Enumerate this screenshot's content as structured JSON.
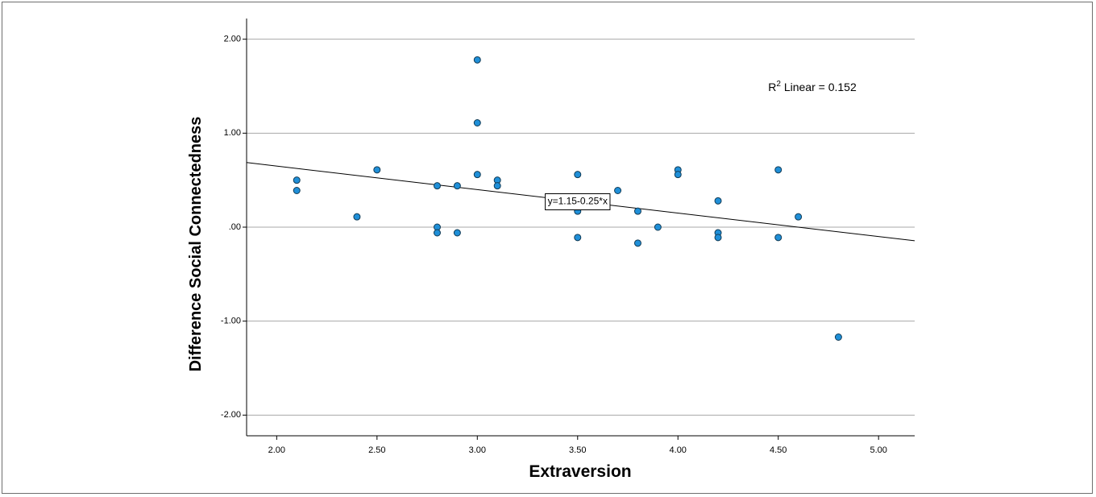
{
  "chart_data": {
    "type": "scatter",
    "title": "",
    "xlabel": "Extraversion",
    "ylabel": "Difference Social Connectedness",
    "xlim": [
      1.85,
      5.18
    ],
    "ylim": [
      -2.22,
      2.22
    ],
    "x_ticks": [
      "2.00",
      "2.50",
      "3.00",
      "3.50",
      "4.00",
      "4.50",
      "5.00"
    ],
    "y_ticks": [
      "2.00",
      "1.00",
      ".00",
      "-1.00",
      "-2.00"
    ],
    "grid": "horizontal",
    "legend": "none",
    "point_color": "#1f8fd8",
    "point_stroke": "#123b55",
    "points": [
      {
        "x": 2.1,
        "y": 0.5
      },
      {
        "x": 2.1,
        "y": 0.39
      },
      {
        "x": 2.4,
        "y": 0.11
      },
      {
        "x": 2.5,
        "y": 0.61
      },
      {
        "x": 2.8,
        "y": 0.44
      },
      {
        "x": 2.8,
        "y": 0.0
      },
      {
        "x": 2.8,
        "y": -0.06
      },
      {
        "x": 2.9,
        "y": 0.44
      },
      {
        "x": 2.9,
        "y": -0.06
      },
      {
        "x": 3.0,
        "y": 1.78
      },
      {
        "x": 3.0,
        "y": 1.11
      },
      {
        "x": 3.0,
        "y": 0.56
      },
      {
        "x": 3.1,
        "y": 0.5
      },
      {
        "x": 3.1,
        "y": 0.44
      },
      {
        "x": 3.5,
        "y": 0.56
      },
      {
        "x": 3.5,
        "y": 0.17
      },
      {
        "x": 3.5,
        "y": -0.11
      },
      {
        "x": 3.7,
        "y": 0.39
      },
      {
        "x": 3.8,
        "y": 0.17
      },
      {
        "x": 3.8,
        "y": -0.17
      },
      {
        "x": 3.9,
        "y": 0.0
      },
      {
        "x": 4.0,
        "y": 0.61
      },
      {
        "x": 4.0,
        "y": 0.56
      },
      {
        "x": 4.2,
        "y": 0.28
      },
      {
        "x": 4.2,
        "y": -0.06
      },
      {
        "x": 4.2,
        "y": -0.11
      },
      {
        "x": 4.5,
        "y": 0.61
      },
      {
        "x": 4.5,
        "y": -0.11
      },
      {
        "x": 4.6,
        "y": 0.11
      },
      {
        "x": 4.8,
        "y": -1.17
      }
    ],
    "fit_line": {
      "intercept": 1.15,
      "slope": -0.25,
      "label": "y=1.15-0.25*x",
      "label_at": {
        "x": 3.5,
        "y": 0.27
      }
    },
    "annotation": {
      "prefix": "R",
      "superscript": "2",
      "text": " Linear = 0.152",
      "at": {
        "x": 4.45,
        "y": 1.45
      }
    }
  }
}
